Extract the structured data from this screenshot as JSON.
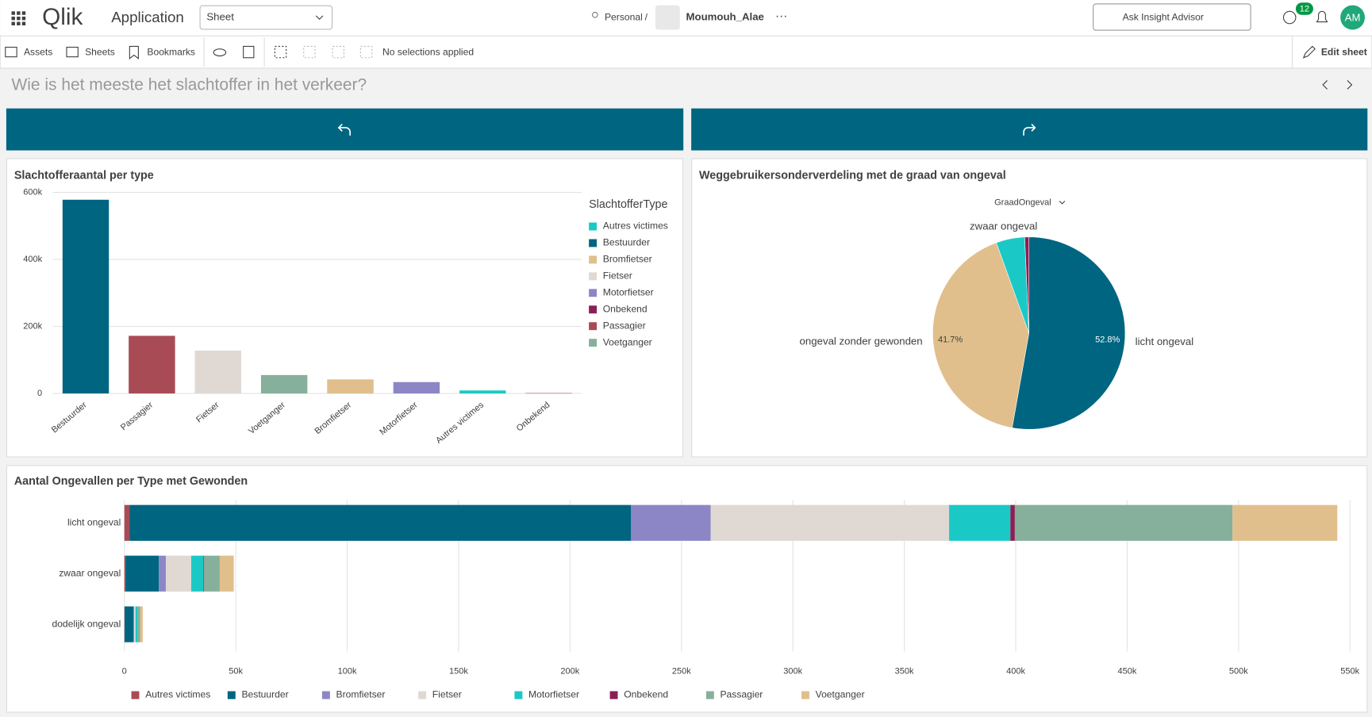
{
  "header": {
    "logo": "Qlik",
    "app": "Application",
    "sheet": "Sheet",
    "space": "Personal",
    "separator": "/",
    "user": "Moumouh_Alae",
    "search": "Ask Insight Advisor",
    "notifications": "12",
    "avatar": "AM"
  },
  "toolbar": {
    "assets": "Assets",
    "sheets": "Sheets",
    "bookmarks": "Bookmarks",
    "selections": "No selections applied",
    "edit": "Edit sheet"
  },
  "sheet_title": "Wie is het meeste het slachtoffer in het verkeer?",
  "chart_data": [
    {
      "type": "bar",
      "title": "Slachtofferaantal per type",
      "categories": [
        "Bestuurder",
        "Passagier",
        "Fietser",
        "Voetganger",
        "Bromfietser",
        "Motorfietser",
        "Autres victimes",
        "Onbekend"
      ],
      "values": [
        578000,
        172000,
        128000,
        55000,
        42000,
        34000,
        9000,
        1000
      ],
      "colors": [
        "#006580",
        "#a94b55",
        "#e0d9d3",
        "#86b09b",
        "#e0bf8c",
        "#8c86c6",
        "#1ac9c6",
        "#8b1f55"
      ],
      "ylim": [
        0,
        600000
      ],
      "yticks": [
        0,
        {
          "value": 200000,
          "label": "200k"
        },
        {
          "value": 400000,
          "label": "400k"
        },
        {
          "value": 600000,
          "label": "600k"
        }
      ],
      "grid": true,
      "legend_title": "SlachtofferType",
      "legend": [
        {
          "name": "Autres victimes",
          "color": "#1ac9c6"
        },
        {
          "name": "Bestuurder",
          "color": "#006580"
        },
        {
          "name": "Bromfietser",
          "color": "#e0bf8c"
        },
        {
          "name": "Fietser",
          "color": "#e0d9d3"
        },
        {
          "name": "Motorfietser",
          "color": "#8c86c6"
        },
        {
          "name": "Onbekend",
          "color": "#8b1f55"
        },
        {
          "name": "Passagier",
          "color": "#a94b55"
        },
        {
          "name": "Voetganger",
          "color": "#86b09b"
        }
      ]
    },
    {
      "type": "pie",
      "title": "Weggebruikersonderverdeling met de graad van ongeval",
      "dimension": "GraadOngeval",
      "categories": [
        "licht ongeval",
        "ongeval zonder gewonden",
        "zwaar ongeval",
        null
      ],
      "values": [
        52.8,
        41.7,
        4.8,
        0.7
      ],
      "value_labels": [
        "52.8%",
        "41.7%",
        null,
        null
      ],
      "colors": [
        "#006580",
        "#e0bf8c",
        "#1ac9c6",
        "#8b1f55"
      ]
    },
    {
      "type": "stacked-hbar",
      "title": "Aantal Ongevallen per Type met Gewonden",
      "categories": [
        "licht ongeval",
        "zwaar ongeval",
        "dodelijk ongeval"
      ],
      "series": [
        {
          "name": "Autres victimes",
          "color": "#a94b55",
          "values": [
            2400,
            500,
            100
          ]
        },
        {
          "name": "Bestuurder",
          "color": "#006580",
          "values": [
            225000,
            15000,
            3900
          ]
        },
        {
          "name": "Bromfietser",
          "color": "#8c86c6",
          "values": [
            35700,
            3100,
            400
          ]
        },
        {
          "name": "Fietser",
          "color": "#e0d9d3",
          "values": [
            107000,
            11400,
            600
          ]
        },
        {
          "name": "Motorfietser",
          "color": "#1ac9c6",
          "values": [
            27500,
            5500,
            800
          ]
        },
        {
          "name": "Onbekend",
          "color": "#8b1f55",
          "values": [
            2000,
            300,
            50
          ]
        },
        {
          "name": "Passagier",
          "color": "#86b09b",
          "values": [
            97700,
            7000,
            1200
          ]
        },
        {
          "name": "Voetganger",
          "color": "#e0bf8c",
          "values": [
            47000,
            6300,
            1200
          ]
        }
      ],
      "xlim": [
        0,
        550000
      ],
      "xticks": [
        0,
        {
          "value": 50000,
          "label": "50k"
        },
        {
          "value": 100000,
          "label": "100k"
        },
        {
          "value": 150000,
          "label": "150k"
        },
        {
          "value": 200000,
          "label": "200k"
        },
        {
          "value": 250000,
          "label": "250k"
        },
        {
          "value": 300000,
          "label": "300k"
        },
        {
          "value": 350000,
          "label": "350k"
        },
        {
          "value": 400000,
          "label": "400k"
        },
        {
          "value": 450000,
          "label": "450k"
        },
        {
          "value": 500000,
          "label": "500k"
        },
        {
          "value": 550000,
          "label": "550k"
        }
      ],
      "grid": true
    }
  ]
}
